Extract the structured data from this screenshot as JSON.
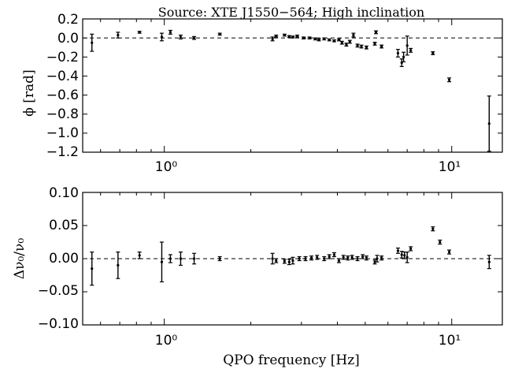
{
  "chart_data": [
    {
      "type": "scatter",
      "title": "Source: XTE J1550−564; High inclination",
      "xlabel": "",
      "ylabel": "ϕ [rad]",
      "xscale": "log",
      "xlim": [
        0.52,
        15
      ],
      "ylim": [
        -1.2,
        0.2
      ],
      "zero_line": "dashed",
      "xticks": [
        1,
        10
      ],
      "xtick_labels": [
        "10⁰",
        "10¹"
      ],
      "yticks": [
        0.2,
        0.0,
        -0.2,
        -0.4,
        -0.6,
        -0.8,
        -1.0,
        -1.2
      ],
      "ytick_labels": [
        "0.2",
        "0.0",
        "−0.2",
        "−0.4",
        "−0.6",
        "−0.8",
        "−1.0",
        "−1.2"
      ],
      "points": [
        {
          "x": 0.56,
          "y": -0.05,
          "err": 0.09
        },
        {
          "x": 0.69,
          "y": 0.03,
          "err": 0.03
        },
        {
          "x": 0.82,
          "y": 0.06,
          "err": 0.01
        },
        {
          "x": 0.98,
          "y": 0.01,
          "err": 0.04
        },
        {
          "x": 1.05,
          "y": 0.06,
          "err": 0.02
        },
        {
          "x": 1.14,
          "y": 0.01,
          "err": 0.02
        },
        {
          "x": 1.27,
          "y": 0.0,
          "err": 0.015
        },
        {
          "x": 1.56,
          "y": 0.04,
          "err": 0.01
        },
        {
          "x": 2.38,
          "y": -0.01,
          "err": 0.02
        },
        {
          "x": 2.45,
          "y": 0.02,
          "err": 0.01
        },
        {
          "x": 2.62,
          "y": 0.03,
          "err": 0.01
        },
        {
          "x": 2.72,
          "y": 0.015,
          "err": 0.01
        },
        {
          "x": 2.8,
          "y": 0.01,
          "err": 0.01
        },
        {
          "x": 2.9,
          "y": 0.02,
          "err": 0.01
        },
        {
          "x": 3.05,
          "y": 0.0,
          "err": 0.01
        },
        {
          "x": 3.2,
          "y": 0.0,
          "err": 0.01
        },
        {
          "x": 3.35,
          "y": -0.01,
          "err": 0.01
        },
        {
          "x": 3.45,
          "y": -0.02,
          "err": 0.01
        },
        {
          "x": 3.6,
          "y": -0.01,
          "err": 0.01
        },
        {
          "x": 3.75,
          "y": -0.02,
          "err": 0.01
        },
        {
          "x": 3.9,
          "y": -0.03,
          "err": 0.01
        },
        {
          "x": 4.05,
          "y": -0.02,
          "err": 0.01
        },
        {
          "x": 4.15,
          "y": -0.05,
          "err": 0.015
        },
        {
          "x": 4.3,
          "y": -0.07,
          "err": 0.015
        },
        {
          "x": 4.42,
          "y": -0.04,
          "err": 0.015
        },
        {
          "x": 4.55,
          "y": 0.03,
          "err": 0.02
        },
        {
          "x": 4.7,
          "y": -0.08,
          "err": 0.015
        },
        {
          "x": 4.85,
          "y": -0.09,
          "err": 0.015
        },
        {
          "x": 5.05,
          "y": -0.1,
          "err": 0.015
        },
        {
          "x": 5.4,
          "y": -0.06,
          "err": 0.015
        },
        {
          "x": 5.45,
          "y": 0.06,
          "err": 0.015
        },
        {
          "x": 5.7,
          "y": -0.09,
          "err": 0.015
        },
        {
          "x": 6.5,
          "y": -0.16,
          "err": 0.04
        },
        {
          "x": 6.7,
          "y": -0.26,
          "err": 0.04
        },
        {
          "x": 6.8,
          "y": -0.2,
          "err": 0.05
        },
        {
          "x": 7.0,
          "y": -0.08,
          "err": 0.1
        },
        {
          "x": 7.2,
          "y": -0.13,
          "err": 0.02
        },
        {
          "x": 8.6,
          "y": -0.16,
          "err": 0.015
        },
        {
          "x": 9.8,
          "y": -0.44,
          "err": 0.02
        },
        {
          "x": 13.5,
          "y": -0.9,
          "err": 0.29
        }
      ]
    },
    {
      "type": "scatter",
      "title": "",
      "xlabel": "QPO frequency [Hz]",
      "ylabel": "Δν₀/ν₀",
      "xscale": "log",
      "xlim": [
        0.52,
        15
      ],
      "ylim": [
        -0.1,
        0.1
      ],
      "zero_line": "dashed",
      "xticks": [
        1,
        10
      ],
      "xtick_labels": [
        "10⁰",
        "10¹"
      ],
      "yticks": [
        0.1,
        0.05,
        0.0,
        -0.05,
        -0.1
      ],
      "ytick_labels": [
        "0.10",
        "0.05",
        "0.00",
        "−0.05",
        "−0.10"
      ],
      "points": [
        {
          "x": 0.56,
          "y": -0.015,
          "err": 0.025
        },
        {
          "x": 0.69,
          "y": -0.01,
          "err": 0.02
        },
        {
          "x": 0.82,
          "y": 0.005,
          "err": 0.005
        },
        {
          "x": 0.98,
          "y": -0.005,
          "err": 0.03
        },
        {
          "x": 1.05,
          "y": 0.0,
          "err": 0.006
        },
        {
          "x": 1.14,
          "y": 0.0,
          "err": 0.01
        },
        {
          "x": 1.27,
          "y": 0.0,
          "err": 0.008
        },
        {
          "x": 1.56,
          "y": 0.0,
          "err": 0.003
        },
        {
          "x": 2.38,
          "y": 0.0,
          "err": 0.008
        },
        {
          "x": 2.45,
          "y": -0.003,
          "err": 0.003
        },
        {
          "x": 2.62,
          "y": -0.004,
          "err": 0.003
        },
        {
          "x": 2.72,
          "y": -0.005,
          "err": 0.004
        },
        {
          "x": 2.8,
          "y": -0.003,
          "err": 0.005
        },
        {
          "x": 2.95,
          "y": 0.0,
          "err": 0.003
        },
        {
          "x": 3.1,
          "y": 0.0,
          "err": 0.003
        },
        {
          "x": 3.25,
          "y": 0.001,
          "err": 0.003
        },
        {
          "x": 3.4,
          "y": 0.002,
          "err": 0.003
        },
        {
          "x": 3.6,
          "y": 0.0,
          "err": 0.003
        },
        {
          "x": 3.75,
          "y": 0.003,
          "err": 0.003
        },
        {
          "x": 3.9,
          "y": 0.006,
          "err": 0.003
        },
        {
          "x": 4.05,
          "y": -0.003,
          "err": 0.003
        },
        {
          "x": 4.2,
          "y": 0.002,
          "err": 0.003
        },
        {
          "x": 4.35,
          "y": 0.001,
          "err": 0.003
        },
        {
          "x": 4.5,
          "y": 0.002,
          "err": 0.003
        },
        {
          "x": 4.7,
          "y": 0.0,
          "err": 0.003
        },
        {
          "x": 4.9,
          "y": 0.003,
          "err": 0.003
        },
        {
          "x": 5.05,
          "y": 0.001,
          "err": 0.003
        },
        {
          "x": 5.4,
          "y": -0.005,
          "err": 0.003
        },
        {
          "x": 5.5,
          "y": 0.0,
          "err": 0.005
        },
        {
          "x": 5.7,
          "y": 0.001,
          "err": 0.003
        },
        {
          "x": 6.5,
          "y": 0.012,
          "err": 0.004
        },
        {
          "x": 6.7,
          "y": 0.006,
          "err": 0.005
        },
        {
          "x": 6.85,
          "y": 0.005,
          "err": 0.005
        },
        {
          "x": 7.0,
          "y": 0.002,
          "err": 0.008
        },
        {
          "x": 7.2,
          "y": 0.015,
          "err": 0.003
        },
        {
          "x": 8.6,
          "y": 0.045,
          "err": 0.003
        },
        {
          "x": 9.1,
          "y": 0.025,
          "err": 0.003
        },
        {
          "x": 9.8,
          "y": 0.01,
          "err": 0.003
        },
        {
          "x": 13.5,
          "y": -0.005,
          "err": 0.01
        }
      ]
    }
  ]
}
